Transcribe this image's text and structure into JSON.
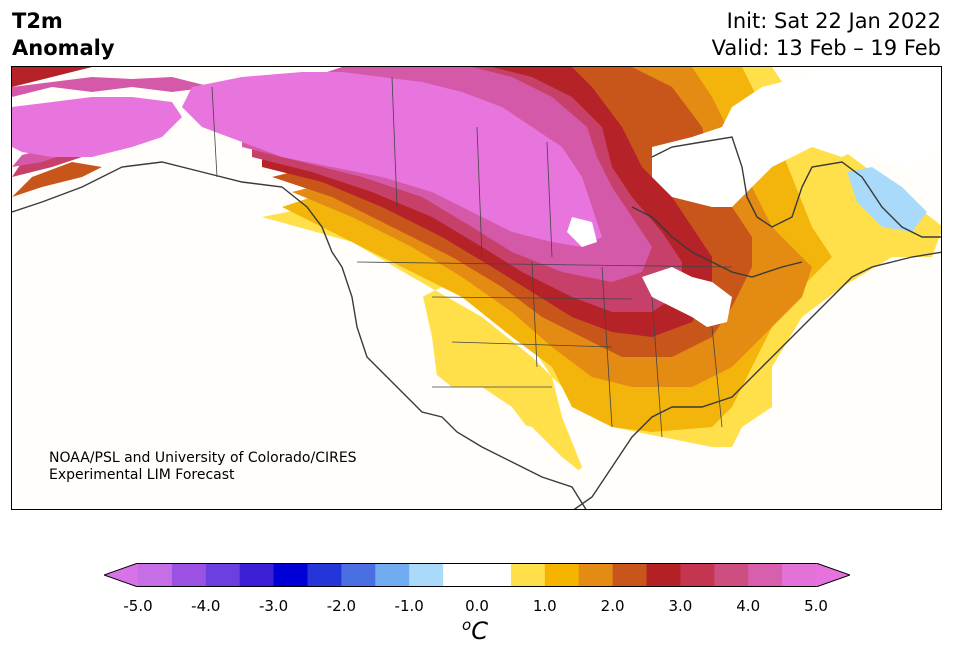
{
  "title": {
    "line1": "T2m",
    "line2": "Anomaly"
  },
  "dates": {
    "init": "Init: Sat 22 Jan 2022",
    "valid": "Valid: 13 Feb – 19 Feb"
  },
  "credit": {
    "line1": "NOAA/PSL and University of Colorado/CIRES",
    "line2": "Experimental LIM Forecast"
  },
  "colorbar": {
    "ticks": [
      "-5.0",
      "-4.0",
      "-3.0",
      "-2.0",
      "-1.0",
      "0.0",
      "1.0",
      "2.0",
      "3.0",
      "4.0",
      "5.0"
    ],
    "unit_base": "C",
    "unit_sup": "o",
    "colors": [
      "#c56ee6",
      "#9b52e3",
      "#6b3fe0",
      "#3a1fd6",
      "#0000d6",
      "#2536d9",
      "#4a6fe3",
      "#72acf0",
      "#a9dafa",
      "#ffffff",
      "#ffffff",
      "#ffe04b",
      "#f4b400",
      "#e38b12",
      "#c8561a",
      "#b32124",
      "#c4354f",
      "#cc4f7f",
      "#d85fae",
      "#e272d8"
    ],
    "under_color": "#d772e8",
    "over_color": "#e673dd"
  },
  "map_colors": {
    "magenta": "#e874dd",
    "pink": "#d45aa9",
    "rose": "#c6406a",
    "red": "#b52227",
    "darkorange": "#c8561a",
    "orange": "#e38b12",
    "gold": "#f3b40b",
    "yellow": "#ffe04b",
    "lightblue": "#a9dafa",
    "white": "#ffffff"
  }
}
